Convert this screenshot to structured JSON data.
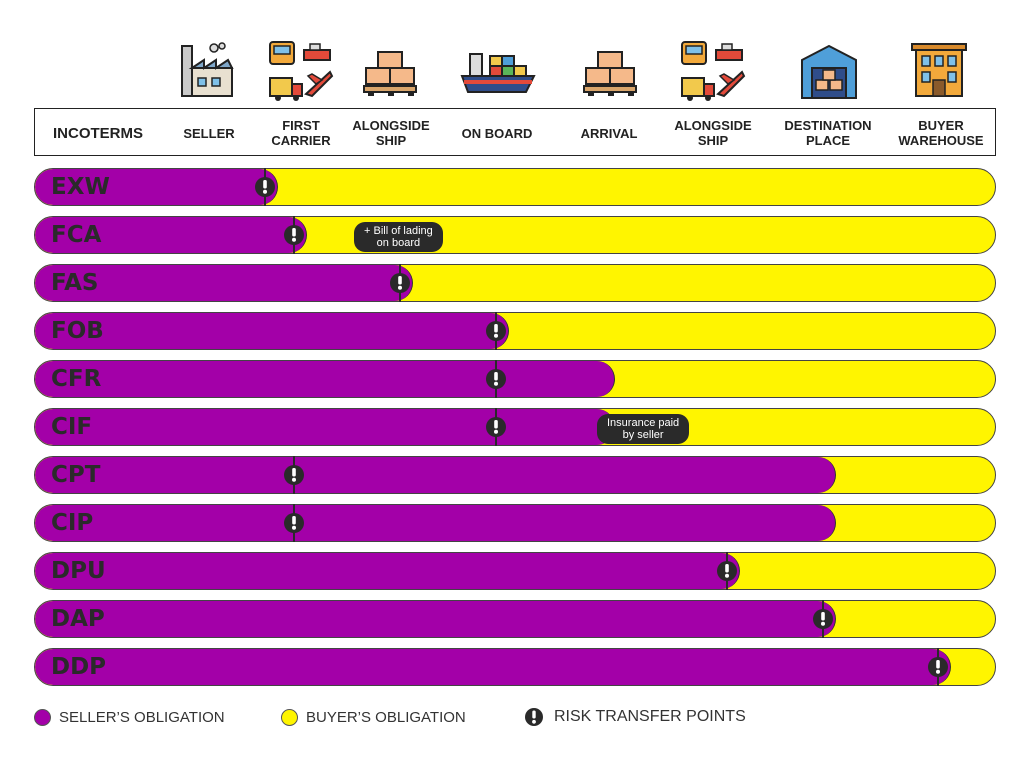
{
  "header": {
    "incoterms_label": "INCOTERMS",
    "columns": [
      {
        "label": "SELLER",
        "icon": "factory-icon"
      },
      {
        "label": "FIRST\nCARRIER",
        "icon": "carriers-icon"
      },
      {
        "label": "ALONGSIDE\nSHIP",
        "icon": "pallet-boxes-icon"
      },
      {
        "label": "ON BOARD",
        "icon": "cargo-ship-icon"
      },
      {
        "label": "ARRIVAL",
        "icon": "pallet-boxes-icon"
      },
      {
        "label": "ALONGSIDE\nSHIP",
        "icon": "carriers-icon"
      },
      {
        "label": "DESTINATION\nPLACE",
        "icon": "warehouse-icon"
      },
      {
        "label": "BUYER\nWAREHOUSE",
        "icon": "building-icon"
      }
    ]
  },
  "terms": [
    {
      "code": "EXW",
      "seller_until": 0.24,
      "risk_at": 0.24
    },
    {
      "code": "FCA",
      "seller_until": 0.27,
      "risk_at": 0.27,
      "note": "+ Bill of lading\non board"
    },
    {
      "code": "FAS",
      "seller_until": 0.38,
      "risk_at": 0.38
    },
    {
      "code": "FOB",
      "seller_until": 0.48,
      "risk_at": 0.48
    },
    {
      "code": "CFR",
      "seller_until": 0.59,
      "risk_at": 0.48
    },
    {
      "code": "CIF",
      "seller_until": 0.59,
      "risk_at": 0.48,
      "note": "Insurance paid\nby seller"
    },
    {
      "code": "CPT",
      "seller_until": 0.82,
      "risk_at": 0.27
    },
    {
      "code": "CIP",
      "seller_until": 0.82,
      "risk_at": 0.27
    },
    {
      "code": "DPU",
      "seller_until": 0.72,
      "risk_at": 0.72
    },
    {
      "code": "DAP",
      "seller_until": 0.82,
      "risk_at": 0.82
    },
    {
      "code": "DDP",
      "seller_until": 0.94,
      "risk_at": 0.94
    }
  ],
  "legend": {
    "seller_label": "SELLER’S OBLIGATION",
    "buyer_label": "BUYER’S OBLIGATION",
    "risk_label": "RISK TRANSFER POINTS"
  },
  "colors": {
    "seller": "#a300a8",
    "buyer": "#fff500",
    "marker": "#2a2a2a"
  }
}
